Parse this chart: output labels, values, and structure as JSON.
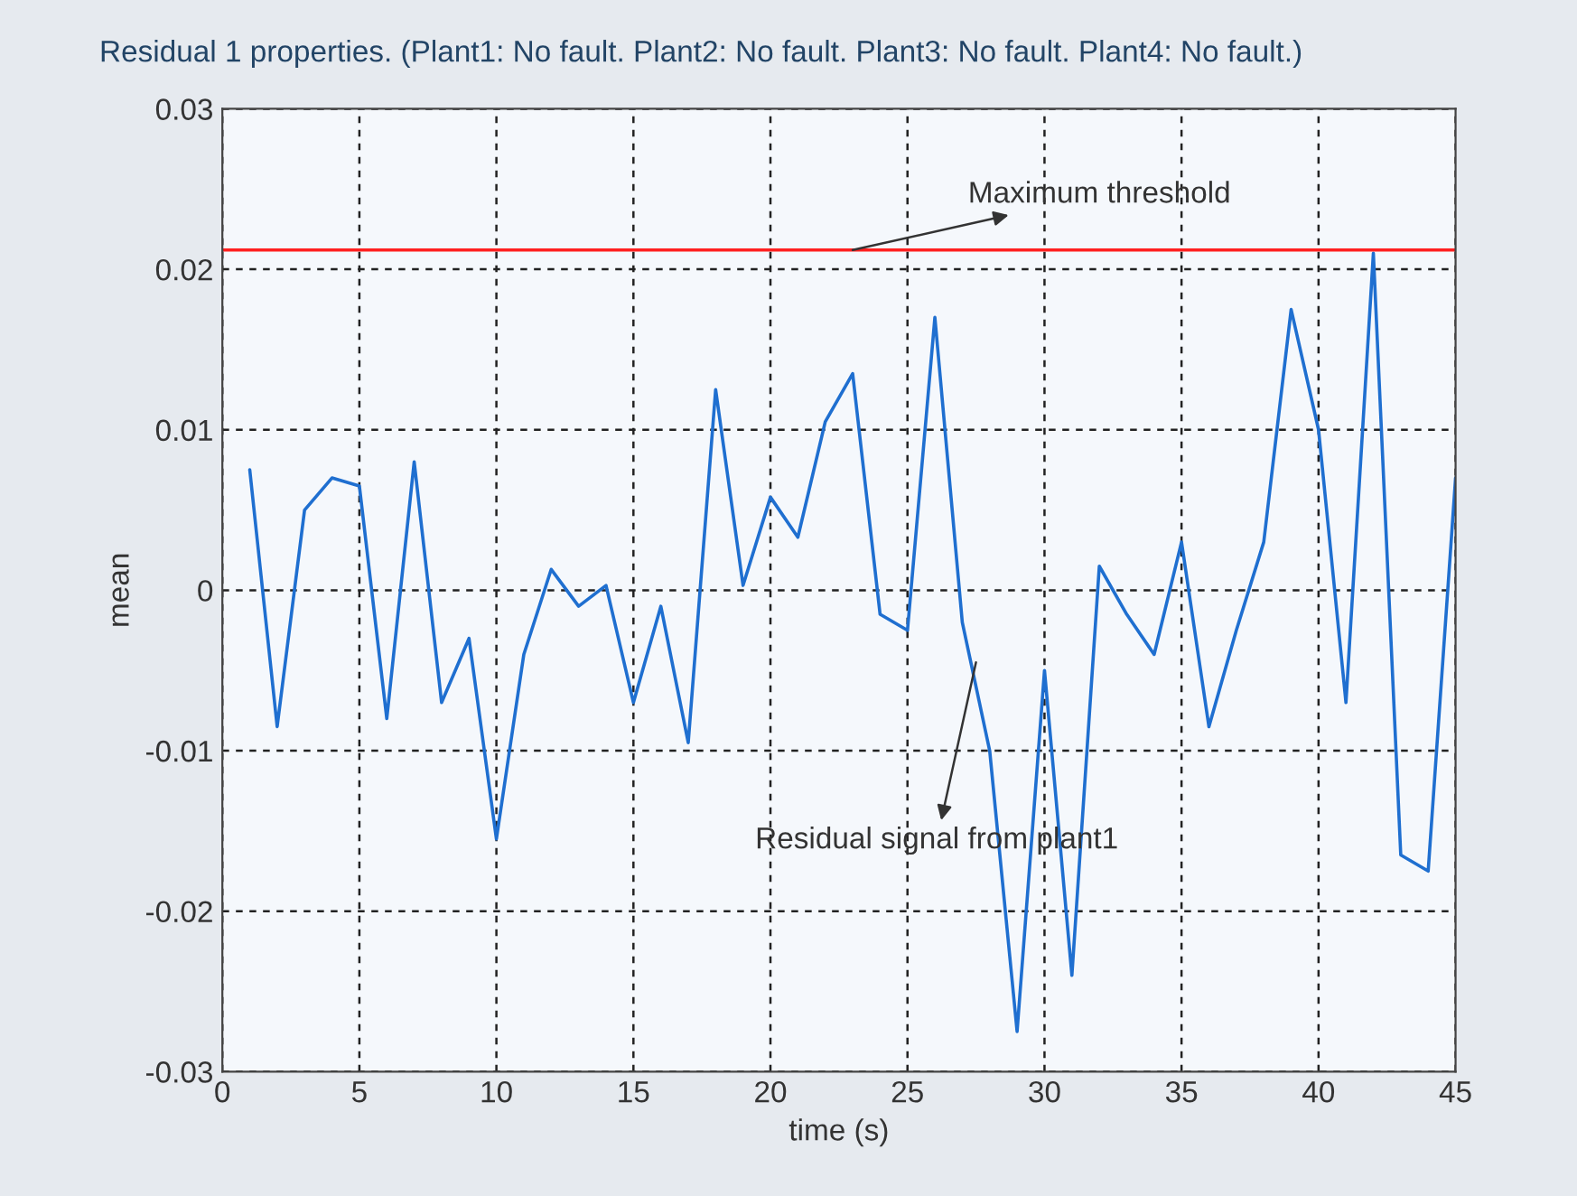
{
  "chart_data": {
    "type": "line",
    "title": "Residual 1 properties. (Plant1: No fault. Plant2: No fault. Plant3: No fault. Plant4: No fault.)",
    "xlabel": "time (s)",
    "ylabel": "mean",
    "x": [
      1,
      2,
      3,
      4,
      5,
      6,
      7,
      8,
      9,
      10,
      11,
      12,
      13,
      14,
      15,
      16,
      17,
      18,
      19,
      20,
      21,
      22,
      23,
      24,
      25,
      26,
      27,
      28,
      29,
      30,
      31,
      32,
      33,
      34,
      35,
      36,
      37,
      38,
      39,
      40,
      41,
      42,
      43,
      44,
      45
    ],
    "series": [
      {
        "color": "#1f6fd0",
        "values": [
          0.0075,
          -0.0085,
          0.005,
          0.007,
          0.0065,
          -0.008,
          0.008,
          -0.007,
          -0.003,
          -0.0155,
          -0.004,
          0.0013,
          -0.001,
          0.0003,
          -0.007,
          -0.001,
          -0.0095,
          0.0125,
          0.0003,
          0.0058,
          0.0033,
          0.0105,
          0.0135,
          -0.0015,
          -0.0025,
          0.017,
          -0.002,
          -0.01,
          -0.0275,
          -0.005,
          -0.024,
          0.0015,
          -0.0015,
          -0.004,
          0.003,
          -0.0085,
          -0.0025,
          0.003,
          0.0175,
          0.01,
          -0.007,
          0.021,
          -0.0165,
          -0.0175,
          0.007
        ]
      }
    ],
    "ref_lines": [
      {
        "axis": "y",
        "value": 0.0212,
        "color": "#ff2020"
      }
    ],
    "annotations": [
      {
        "text": "Maximum threshold",
        "x": 23,
        "y": 0.0212
      },
      {
        "text": "Residual signal from plant1",
        "x": 27.5,
        "y": -0.0045
      }
    ],
    "xlim": [
      0,
      45
    ],
    "ylim": [
      -0.03,
      0.03
    ],
    "xticks": [
      0,
      5,
      10,
      15,
      20,
      25,
      30,
      35,
      40,
      45
    ],
    "yticks": [
      -0.03,
      -0.02,
      -0.01,
      0,
      0.01,
      0.02,
      0.03
    ],
    "grid": true,
    "line_style": "solid",
    "marker": "none"
  }
}
